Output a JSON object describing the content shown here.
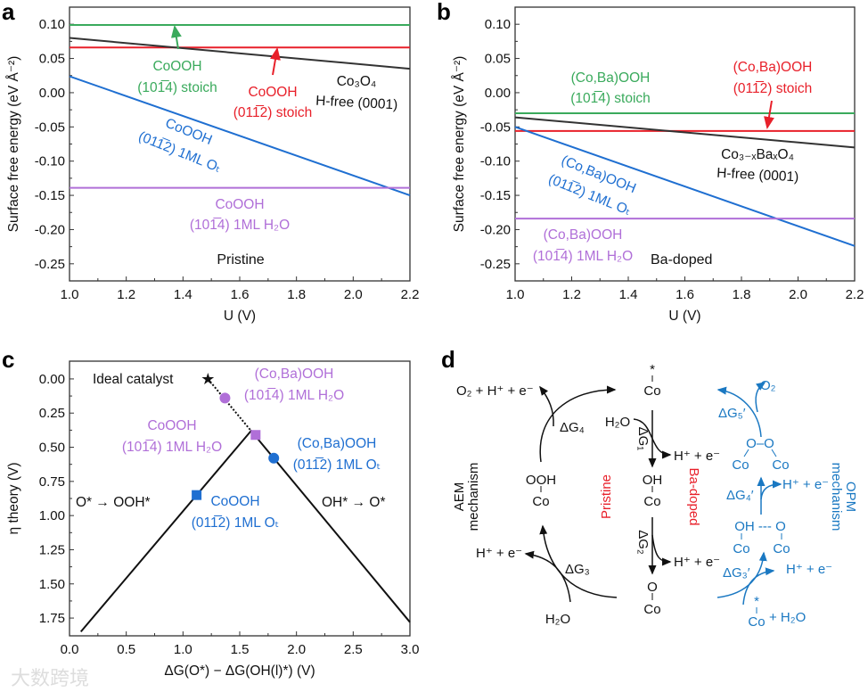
{
  "colors": {
    "green": "#3aaa5c",
    "red": "#e8202a",
    "black": "#333333",
    "blue": "#1f6fd1",
    "purple": "#b06fd8",
    "scheme_blue": "#1a78c2",
    "scheme_red": "#e8202a"
  },
  "watermark": "大数跨境",
  "chart_data": [
    {
      "panel": "a",
      "type": "line",
      "title": "",
      "condition_label": "Pristine",
      "xlabel": "U (V)",
      "ylabel": "Surface free energy (eV Å⁻²)",
      "xlim": [
        1.0,
        2.2
      ],
      "ylim": [
        -0.275,
        0.125
      ],
      "xticks": [
        "1.0",
        "1.2",
        "1.4",
        "1.6",
        "1.8",
        "2.0",
        "2.2"
      ],
      "yticks": [
        "0.10",
        "0.05",
        "0.00",
        "-0.05",
        "-0.10",
        "-0.15",
        "-0.20",
        "-0.25"
      ],
      "series": [
        {
          "name": "CoOOH (101̅4) stoich",
          "color": "green",
          "x": [
            1.0,
            2.2
          ],
          "y": [
            0.099,
            0.099
          ],
          "label": [
            "CoOOH",
            "(101̅4) stoich"
          ]
        },
        {
          "name": "CoOOH (011̅2) stoich",
          "color": "red",
          "x": [
            1.0,
            2.2
          ],
          "y": [
            0.066,
            0.066
          ],
          "label": [
            "CoOOH",
            "(011̅2) stoich"
          ]
        },
        {
          "name": "Co3O4 H-free (0001)",
          "color": "black",
          "x": [
            1.0,
            2.2
          ],
          "y": [
            0.08,
            0.035
          ],
          "label": [
            "Co₃O₄",
            "H-free (0001)"
          ]
        },
        {
          "name": "CoOOH (011̅2) 1ML Ot",
          "color": "blue",
          "x": [
            1.0,
            2.2
          ],
          "y": [
            0.024,
            -0.15
          ],
          "label": [
            "CoOOH",
            "(011̅2) 1ML Oₜ"
          ]
        },
        {
          "name": "CoOOH (101̅4) 1ML H2O",
          "color": "purple",
          "x": [
            1.0,
            2.2
          ],
          "y": [
            -0.139,
            -0.139
          ],
          "label": [
            "CoOOH",
            "(101̅4) 1ML H₂O"
          ]
        }
      ]
    },
    {
      "panel": "b",
      "type": "line",
      "title": "",
      "condition_label": "Ba-doped",
      "xlabel": "U (V)",
      "ylabel": "Surface free energy (eV Å⁻²)",
      "xlim": [
        1.0,
        2.2
      ],
      "ylim": [
        -0.275,
        0.125
      ],
      "xticks": [
        "1.0",
        "1.2",
        "1.4",
        "1.6",
        "1.8",
        "2.0",
        "2.2"
      ],
      "yticks": [
        "0.10",
        "0.05",
        "0.00",
        "-0.05",
        "-0.10",
        "-0.15",
        "-0.20",
        "-0.25"
      ],
      "series": [
        {
          "name": "(Co,Ba)OOH (101̅4) stoich",
          "color": "green",
          "x": [
            1.0,
            2.2
          ],
          "y": [
            -0.03,
            -0.03
          ],
          "label": [
            "(Co,Ba)OOH",
            "(101̅4) stoich"
          ]
        },
        {
          "name": "(Co,Ba)OOH (011̅2) stoich",
          "color": "red",
          "x": [
            1.0,
            2.2
          ],
          "y": [
            -0.056,
            -0.056
          ],
          "label": [
            "(Co,Ba)OOH",
            "(011̅2) stoich"
          ]
        },
        {
          "name": "Co3-xBaxO4 H-free (0001)",
          "color": "black",
          "x": [
            1.0,
            2.2
          ],
          "y": [
            -0.036,
            -0.08
          ],
          "label": [
            "Co₃₋ₓBaₓO₄",
            "H-free (0001)"
          ]
        },
        {
          "name": "(Co,Ba)OOH (011̅2) 1ML Ot",
          "color": "blue",
          "x": [
            1.0,
            2.2
          ],
          "y": [
            -0.05,
            -0.224
          ],
          "label": [
            "(Co,Ba)OOH",
            "(011̅2) 1ML Oₜ"
          ]
        },
        {
          "name": "(Co,Ba)OOH (101̅4) 1ML H2O",
          "color": "purple",
          "x": [
            1.0,
            2.2
          ],
          "y": [
            -0.184,
            -0.184
          ],
          "label": [
            "(Co,Ba)OOH",
            "(101̅4) 1ML H₂O"
          ]
        }
      ]
    },
    {
      "panel": "c",
      "type": "scatter",
      "title": "",
      "xlabel": "ΔG(O*) − ΔG(OH(l)*) (V)",
      "ylabel": "η theory (V)",
      "xlim": [
        0.0,
        3.0
      ],
      "ylim": [
        1.88,
        -0.13
      ],
      "xticks": [
        "0.0",
        "0.5",
        "1.0",
        "1.5",
        "2.0",
        "2.5",
        "3.0"
      ],
      "yticks": [
        "0.00",
        "0.25",
        "0.50",
        "0.75",
        "1.00",
        "1.25",
        "1.50",
        "1.75"
      ],
      "volcano": {
        "left": {
          "x": [
            0.1,
            1.6
          ],
          "y": [
            1.85,
            0.38
          ]
        },
        "right": {
          "x": [
            1.6,
            3.0
          ],
          "y": [
            0.38,
            1.78
          ]
        },
        "left_label": "O* → OOH*",
        "right_label": "OH* → O*"
      },
      "ideal": {
        "x": 1.22,
        "y": 0.0,
        "label": "Ideal catalyst"
      },
      "points": [
        {
          "name": "(Co,Ba)OOH (101̅4) 1ML H2O",
          "x": 1.37,
          "y": 0.14,
          "marker": "circle",
          "color": "purple",
          "label": [
            "(Co,Ba)OOH",
            "(101̅4) 1ML H₂O"
          ]
        },
        {
          "name": "CoOOH (101̅4) 1ML H2O",
          "x": 1.64,
          "y": 0.41,
          "marker": "square",
          "color": "purple",
          "label": [
            "CoOOH",
            "(101̅4) 1ML H₂O"
          ]
        },
        {
          "name": "(Co,Ba)OOH (011̅2) 1ML Ot",
          "x": 1.8,
          "y": 0.58,
          "marker": "circle",
          "color": "blue",
          "label": [
            "(Co,Ba)OOH",
            "(011̅2) 1ML Oₜ"
          ]
        },
        {
          "name": "CoOOH (011̅2) 1ML Ot",
          "x": 1.12,
          "y": 0.85,
          "marker": "square",
          "color": "blue",
          "label": [
            "CoOOH",
            "(011̅2) 1ML Oₜ"
          ]
        }
      ]
    }
  ],
  "panel_labels": [
    "a",
    "b",
    "c",
    "d"
  ],
  "scheme": {
    "aem": [
      "AEM",
      "mechanism"
    ],
    "opm": [
      "OPM",
      "mechanism"
    ],
    "pristine": "Pristine",
    "ba_doped": "Ba-doped",
    "o2_h_e": "O₂ + H⁺ + e⁻",
    "h_e": "H⁺ + e⁻",
    "h2o": "H₂O",
    "o2": "O₂",
    "co": "Co",
    "star": "*",
    "oh": "OH",
    "o": "O",
    "ooh": "OOH",
    "o_o": "O–O",
    "oh_o": "OH --- O",
    "plus_h2o": "+ H₂O",
    "dg1": "ΔG₁",
    "dg2": "ΔG₂",
    "dg3": "ΔG₃",
    "dg4": "ΔG₄",
    "dg3p": "ΔG₃′",
    "dg4p": "ΔG₄′",
    "dg5p": "ΔG₅′"
  }
}
